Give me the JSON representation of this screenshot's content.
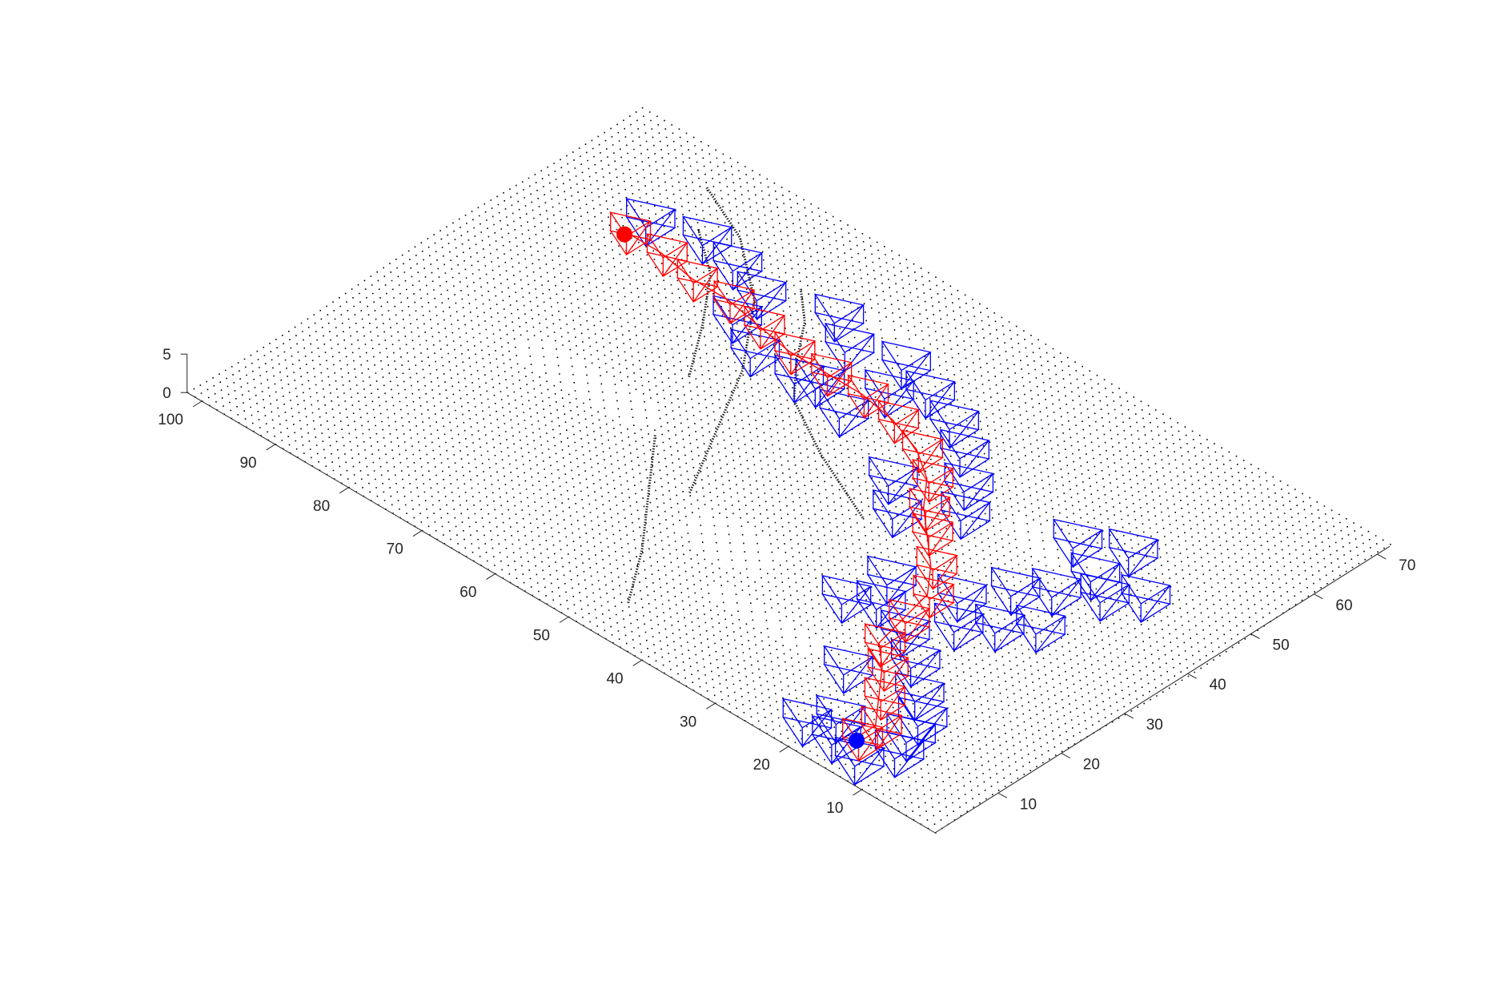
{
  "chart_data": {
    "type": "scatter3d",
    "title": "",
    "xlabel": "",
    "ylabel": "",
    "zlabel": "",
    "grid": false,
    "xlim": [
      0,
      72
    ],
    "ylim": [
      0,
      102
    ],
    "zlim": [
      0,
      5
    ],
    "x_ticks": [
      10,
      20,
      30,
      40,
      50,
      60,
      70
    ],
    "y_ticks": [
      10,
      20,
      30,
      40,
      50,
      60,
      70,
      80,
      90,
      100
    ],
    "z_ticks": [
      0,
      5
    ],
    "surface_point_spacing": 1,
    "start_point": {
      "x": 5,
      "y": 15,
      "z": 1,
      "color": "#0000ff"
    },
    "goal_point": {
      "x": 53,
      "y": 88,
      "z": 1,
      "color": "#ff0000"
    },
    "path_color": "#ff0000",
    "explored_color": "#0000ff",
    "surface_point_color": "#000000",
    "path": [
      {
        "x": 5,
        "y": 15
      },
      {
        "x": 8,
        "y": 15
      },
      {
        "x": 12,
        "y": 18
      },
      {
        "x": 16,
        "y": 21
      },
      {
        "x": 19,
        "y": 24
      },
      {
        "x": 24,
        "y": 25
      },
      {
        "x": 29,
        "y": 26
      },
      {
        "x": 33,
        "y": 29
      },
      {
        "x": 37,
        "y": 33
      },
      {
        "x": 40,
        "y": 36
      },
      {
        "x": 44,
        "y": 39
      },
      {
        "x": 47,
        "y": 43
      },
      {
        "x": 49,
        "y": 48
      },
      {
        "x": 50,
        "y": 53
      },
      {
        "x": 50,
        "y": 58
      },
      {
        "x": 50,
        "y": 63
      },
      {
        "x": 51,
        "y": 68
      },
      {
        "x": 52,
        "y": 73
      },
      {
        "x": 52,
        "y": 78
      },
      {
        "x": 53,
        "y": 83
      },
      {
        "x": 53,
        "y": 88
      }
    ],
    "explored": [
      {
        "x": 3,
        "y": 17
      },
      {
        "x": 2,
        "y": 13
      },
      {
        "x": 6,
        "y": 11
      },
      {
        "x": 9,
        "y": 12
      },
      {
        "x": 12,
        "y": 13
      },
      {
        "x": 6,
        "y": 19
      },
      {
        "x": 3,
        "y": 21
      },
      {
        "x": 15,
        "y": 16
      },
      {
        "x": 13,
        "y": 24
      },
      {
        "x": 19,
        "y": 20
      },
      {
        "x": 22,
        "y": 24
      },
      {
        "x": 24,
        "y": 29
      },
      {
        "x": 27,
        "y": 21
      },
      {
        "x": 30,
        "y": 18
      },
      {
        "x": 33,
        "y": 15
      },
      {
        "x": 22,
        "y": 32
      },
      {
        "x": 28,
        "y": 31
      },
      {
        "x": 31,
        "y": 24
      },
      {
        "x": 36,
        "y": 21
      },
      {
        "x": 39,
        "y": 18
      },
      {
        "x": 42,
        "y": 14
      },
      {
        "x": 45,
        "y": 11
      },
      {
        "x": 44,
        "y": 17
      },
      {
        "x": 47,
        "y": 22
      },
      {
        "x": 50,
        "y": 17
      },
      {
        "x": 37,
        "y": 38
      },
      {
        "x": 41,
        "y": 42
      },
      {
        "x": 42,
        "y": 33
      },
      {
        "x": 46,
        "y": 36
      },
      {
        "x": 50,
        "y": 40
      },
      {
        "x": 53,
        "y": 44
      },
      {
        "x": 55,
        "y": 49
      },
      {
        "x": 57,
        "y": 54
      },
      {
        "x": 46,
        "y": 53
      },
      {
        "x": 48,
        "y": 58
      },
      {
        "x": 55,
        "y": 60
      },
      {
        "x": 58,
        "y": 64
      },
      {
        "x": 47,
        "y": 66
      },
      {
        "x": 50,
        "y": 71
      },
      {
        "x": 55,
        "y": 72
      },
      {
        "x": 57,
        "y": 77
      },
      {
        "x": 58,
        "y": 82
      },
      {
        "x": 56,
        "y": 88
      },
      {
        "x": 47,
        "y": 60
      },
      {
        "x": 52,
        "y": 52
      }
    ]
  }
}
